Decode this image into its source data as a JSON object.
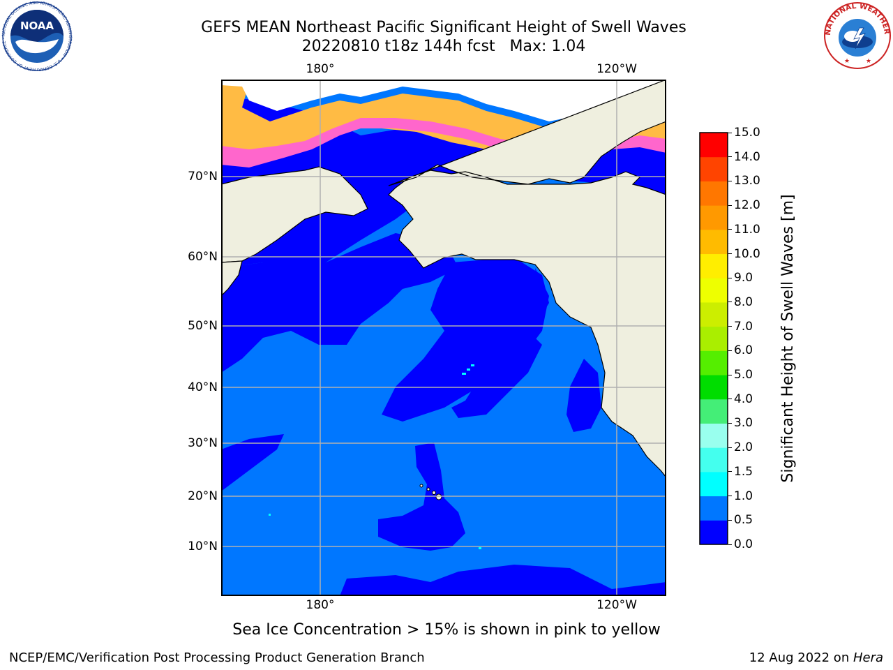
{
  "title": {
    "line1": "GEFS MEAN Northeast Pacific Significant Height of Swell Waves",
    "line2": "20220810 t18z 144h fcst   Max: 1.04"
  },
  "map": {
    "lon_labels_top": [
      "180°",
      "120°W"
    ],
    "lon_labels_bottom": [
      "180°",
      "120°W"
    ],
    "lat_labels": [
      "70°N",
      "60°N",
      "50°N",
      "40°N",
      "30°N",
      "20°N",
      "10°N"
    ],
    "colors": {
      "land": "#efefdf",
      "swell_0_0_5": "#0000ff",
      "swell_0_5_1_0": "#0077ff",
      "swell_1_0_1_5": "#00ffff",
      "sea_ice_pink": "#ff66cc",
      "sea_ice_orange": "#ffbb44",
      "grid": "#b0b0b0"
    }
  },
  "colorbar": {
    "title": "Significant Height of Swell Waves [m]",
    "tick_labels": [
      "0.0",
      "0.5",
      "1.0",
      "1.5",
      "2.0",
      "3.0",
      "4.0",
      "5.0",
      "6.0",
      "7.0",
      "8.0",
      "9.0",
      "10.0",
      "11.0",
      "12.0",
      "13.0",
      "14.0",
      "15.0"
    ],
    "colors": [
      "#0000ff",
      "#0077ff",
      "#00ffff",
      "#44ffee",
      "#99ffee",
      "#44ee77",
      "#00dd00",
      "#55ee00",
      "#aaee00",
      "#ccee00",
      "#eeff00",
      "#ffee00",
      "#ffbb00",
      "#ff9900",
      "#ff7700",
      "#ff4400",
      "#ff0000"
    ]
  },
  "caption": "Sea Ice Concentration > 15% is shown in pink to yellow",
  "footer": {
    "left": "NCEP/EMC/Verification Post Processing Product Generation Branch",
    "right_prefix": "12 Aug 2022 on ",
    "right_host": "Hera"
  },
  "logos": {
    "noaa_text": "NOAA",
    "noaa_ring": "NATIONAL OCEANIC AND ATMOSPHERIC ADMINISTRATION • U.S. DEPARTMENT OF COMMERCE •",
    "nws_ring": "NATIONAL WEATHER SERVICE"
  }
}
